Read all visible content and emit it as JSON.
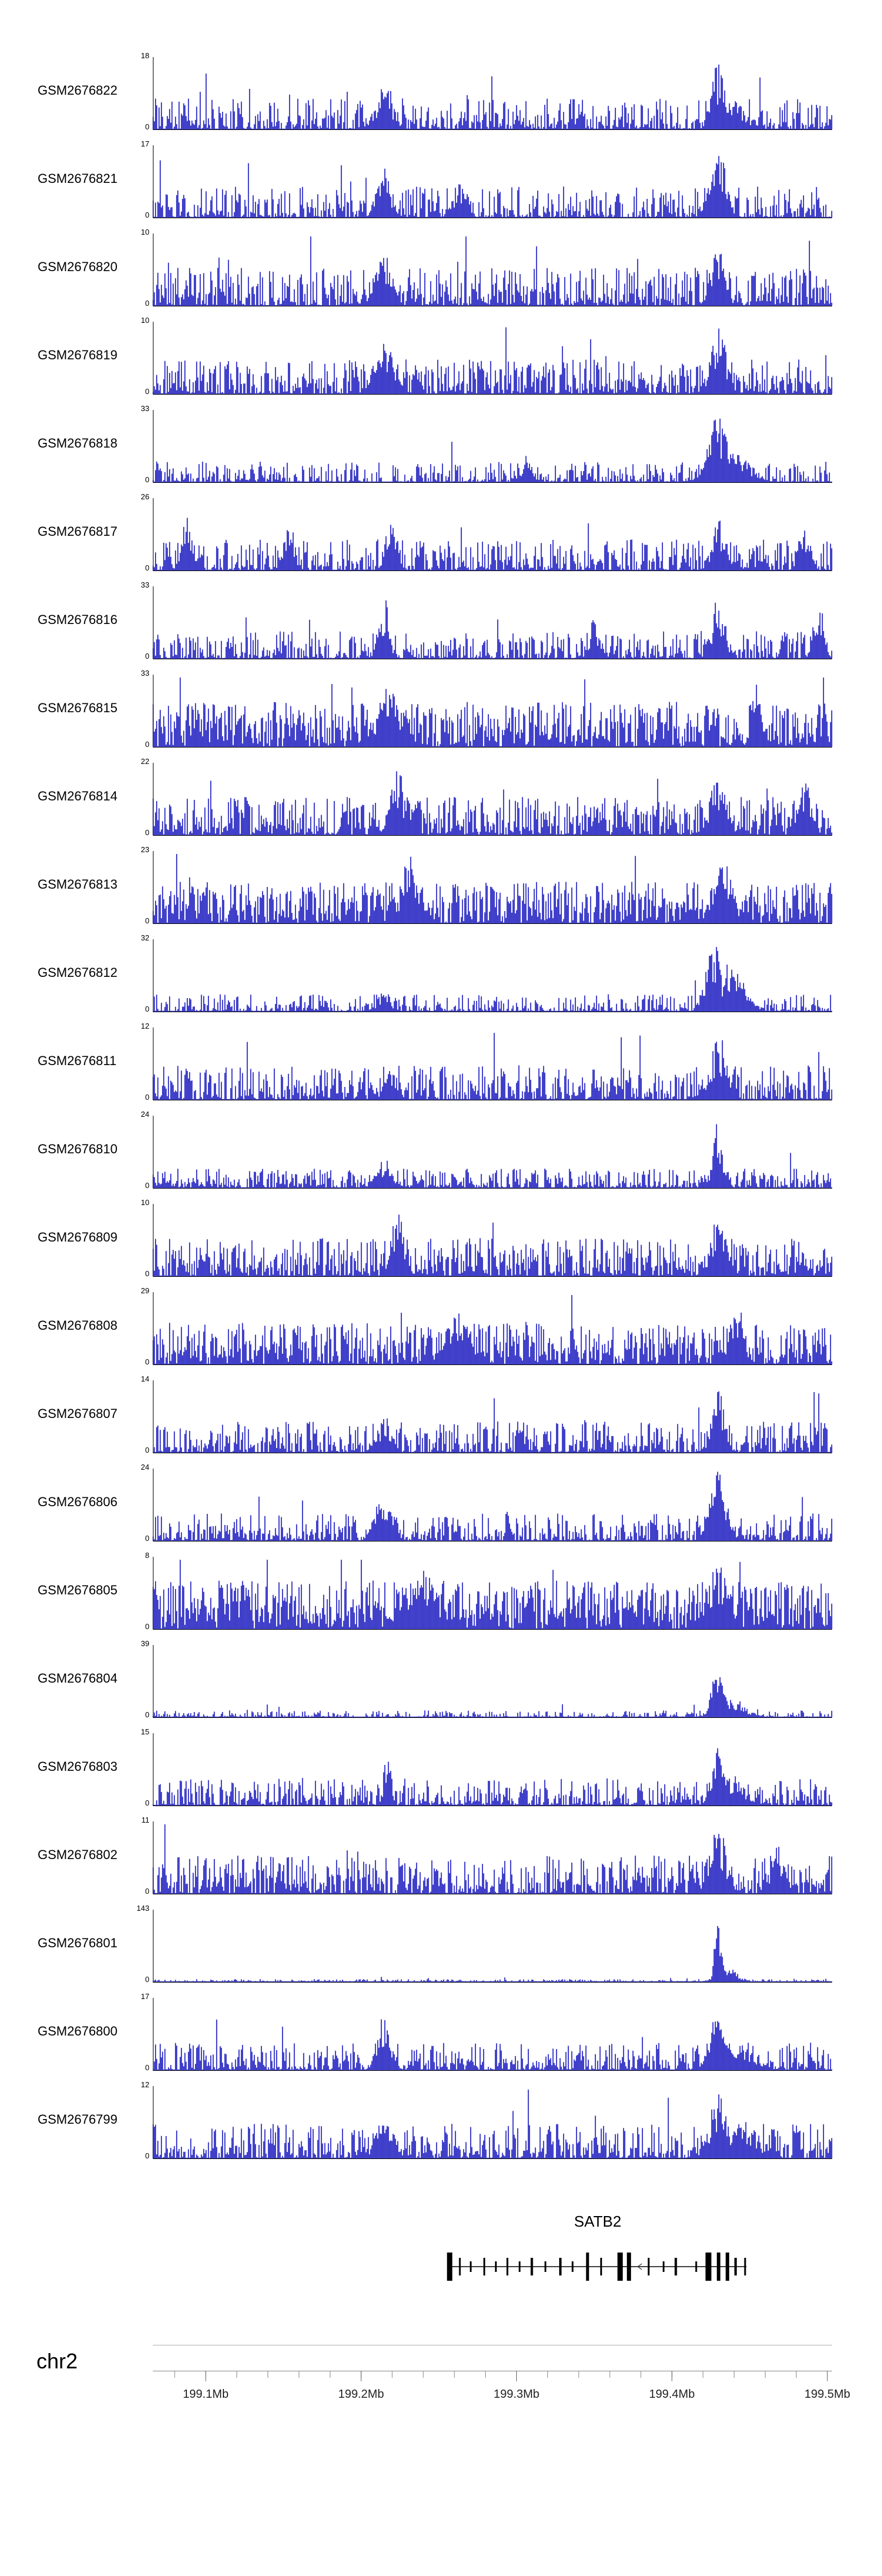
{
  "chromosome": {
    "label": "chr2"
  },
  "colors": {
    "signal": "#0000B8",
    "axis": "#000000",
    "gene": "#000000",
    "ruler": "#888888",
    "ruler_separator": "#b0b0b0",
    "tick_text": "#222222"
  },
  "chart_data": {
    "type": "area",
    "title": "",
    "description": "Genome browser read-coverage tracks over the SATB2 locus on chr2",
    "legend": "none",
    "grid": "off",
    "chromosome_label": "chr2",
    "x_axis": {
      "chrom": "chr2",
      "unit": "Mb",
      "range_mb": [
        199.066,
        199.503
      ],
      "tick_values_mb": [
        199.1,
        199.2,
        199.3,
        199.4,
        199.5
      ],
      "tick_labels": [
        "199.1Mb",
        "199.2Mb",
        "199.3Mb",
        "199.4Mb",
        "199.5Mb"
      ],
      "minor_tick_step_mb": 0.02
    },
    "y_axis": {
      "min_label": "0"
    },
    "peak_positions_mb": {
      "primary": 199.43,
      "secondary": 199.215
    },
    "tracks": [
      {
        "name": "GSM2676822",
        "y_max": 18,
        "seed": 1,
        "base": 0.45,
        "sharp": 2.2,
        "peaks": [
          [
            0.34,
            0.012,
            0.7
          ],
          [
            0.832,
            0.01,
            1.0
          ],
          [
            0.85,
            0.02,
            0.45
          ]
        ]
      },
      {
        "name": "GSM2676821",
        "y_max": 17,
        "seed": 2,
        "base": 0.45,
        "sharp": 2.2,
        "peaks": [
          [
            0.34,
            0.01,
            0.75
          ],
          [
            0.832,
            0.012,
            1.0
          ],
          [
            0.45,
            0.01,
            0.5
          ]
        ]
      },
      {
        "name": "GSM2676820",
        "y_max": 10,
        "seed": 3,
        "base": 0.55,
        "sharp": 1.6,
        "peaks": [
          [
            0.34,
            0.012,
            0.8
          ],
          [
            0.832,
            0.01,
            1.0
          ]
        ]
      },
      {
        "name": "GSM2676819",
        "y_max": 10,
        "seed": 4,
        "base": 0.5,
        "sharp": 1.7,
        "peaks": [
          [
            0.34,
            0.015,
            0.8
          ],
          [
            0.832,
            0.012,
            1.0
          ]
        ]
      },
      {
        "name": "GSM2676818",
        "y_max": 33,
        "seed": 5,
        "base": 0.3,
        "sharp": 2.5,
        "peaks": [
          [
            0.832,
            0.014,
            1.0
          ],
          [
            0.85,
            0.025,
            0.55
          ],
          [
            0.55,
            0.008,
            0.4
          ]
        ]
      },
      {
        "name": "GSM2676817",
        "y_max": 26,
        "seed": 6,
        "base": 0.45,
        "sharp": 2.0,
        "peaks": [
          [
            0.05,
            0.008,
            0.85
          ],
          [
            0.2,
            0.008,
            0.75
          ],
          [
            0.35,
            0.008,
            0.8
          ],
          [
            0.832,
            0.01,
            0.8
          ],
          [
            0.96,
            0.008,
            0.75
          ]
        ]
      },
      {
        "name": "GSM2676816",
        "y_max": 33,
        "seed": 7,
        "base": 0.4,
        "sharp": 2.2,
        "peaks": [
          [
            0.34,
            0.008,
            0.9
          ],
          [
            0.65,
            0.008,
            0.6
          ],
          [
            0.832,
            0.01,
            0.9
          ],
          [
            0.98,
            0.008,
            0.85
          ]
        ]
      },
      {
        "name": "GSM2676815",
        "y_max": 33,
        "seed": 8,
        "base": 0.65,
        "sharp": 1.2,
        "peaks": [
          [
            0.89,
            0.008,
            1.0
          ],
          [
            0.35,
            0.02,
            0.85
          ]
        ]
      },
      {
        "name": "GSM2676814",
        "y_max": 22,
        "seed": 9,
        "base": 0.55,
        "sharp": 1.5,
        "peaks": [
          [
            0.36,
            0.01,
            1.0
          ],
          [
            0.832,
            0.012,
            0.9
          ],
          [
            0.96,
            0.01,
            0.8
          ]
        ]
      },
      {
        "name": "GSM2676813",
        "y_max": 23,
        "seed": 10,
        "base": 0.6,
        "sharp": 1.3,
        "peaks": [
          [
            0.38,
            0.015,
            1.0
          ],
          [
            0.84,
            0.015,
            0.9
          ]
        ]
      },
      {
        "name": "GSM2676812",
        "y_max": 32,
        "seed": 11,
        "base": 0.25,
        "sharp": 2.5,
        "peaks": [
          [
            0.825,
            0.012,
            1.0
          ],
          [
            0.85,
            0.02,
            0.7
          ],
          [
            0.34,
            0.01,
            0.3
          ]
        ]
      },
      {
        "name": "GSM2676811",
        "y_max": 12,
        "seed": 12,
        "base": 0.5,
        "sharp": 1.8,
        "peaks": [
          [
            0.832,
            0.012,
            1.0
          ],
          [
            0.35,
            0.01,
            0.5
          ]
        ]
      },
      {
        "name": "GSM2676810",
        "y_max": 24,
        "seed": 13,
        "base": 0.28,
        "sharp": 2.0,
        "peaks": [
          [
            0.832,
            0.008,
            1.0
          ],
          [
            0.34,
            0.012,
            0.45
          ]
        ]
      },
      {
        "name": "GSM2676809",
        "y_max": 10,
        "seed": 14,
        "base": 0.55,
        "sharp": 1.6,
        "peaks": [
          [
            0.36,
            0.01,
            1.0
          ],
          [
            0.832,
            0.012,
            0.85
          ]
        ]
      },
      {
        "name": "GSM2676808",
        "y_max": 29,
        "seed": 15,
        "base": 0.6,
        "sharp": 1.3,
        "peaks": [
          [
            0.86,
            0.01,
            1.0
          ],
          [
            0.45,
            0.02,
            0.8
          ]
        ]
      },
      {
        "name": "GSM2676807",
        "y_max": 14,
        "seed": 16,
        "base": 0.45,
        "sharp": 1.9,
        "peaks": [
          [
            0.832,
            0.01,
            1.0
          ],
          [
            0.34,
            0.01,
            0.55
          ]
        ]
      },
      {
        "name": "GSM2676806",
        "y_max": 24,
        "seed": 17,
        "base": 0.4,
        "sharp": 2.1,
        "peaks": [
          [
            0.34,
            0.012,
            0.8
          ],
          [
            0.832,
            0.012,
            1.0
          ]
        ]
      },
      {
        "name": "GSM2676805",
        "y_max": 8,
        "seed": 18,
        "base": 0.7,
        "sharp": 1.1,
        "peaks": [
          [
            0.832,
            0.015,
            1.0
          ],
          [
            0.4,
            0.02,
            0.85
          ]
        ]
      },
      {
        "name": "GSM2676804",
        "y_max": 39,
        "seed": 19,
        "base": 0.1,
        "sharp": 2.8,
        "peaks": [
          [
            0.832,
            0.008,
            1.0
          ],
          [
            0.85,
            0.02,
            0.3
          ]
        ]
      },
      {
        "name": "GSM2676803",
        "y_max": 15,
        "seed": 20,
        "base": 0.4,
        "sharp": 2.0,
        "peaks": [
          [
            0.345,
            0.005,
            1.0
          ],
          [
            0.832,
            0.01,
            0.85
          ],
          [
            0.85,
            0.02,
            0.45
          ]
        ]
      },
      {
        "name": "GSM2676802",
        "y_max": 11,
        "seed": 21,
        "base": 0.55,
        "sharp": 1.6,
        "peaks": [
          [
            0.832,
            0.012,
            1.0
          ],
          [
            0.92,
            0.01,
            0.7
          ]
        ]
      },
      {
        "name": "GSM2676801",
        "y_max": 143,
        "seed": 22,
        "base": 0.04,
        "sharp": 2.0,
        "peaks": [
          [
            0.832,
            0.005,
            1.0
          ],
          [
            0.845,
            0.015,
            0.22
          ]
        ]
      },
      {
        "name": "GSM2676800",
        "y_max": 17,
        "seed": 23,
        "base": 0.4,
        "sharp": 2.1,
        "peaks": [
          [
            0.34,
            0.01,
            0.8
          ],
          [
            0.832,
            0.012,
            1.0
          ],
          [
            0.855,
            0.025,
            0.45
          ]
        ]
      },
      {
        "name": "GSM2676799",
        "y_max": 12,
        "seed": 24,
        "base": 0.5,
        "sharp": 1.8,
        "peaks": [
          [
            0.34,
            0.012,
            0.7
          ],
          [
            0.832,
            0.012,
            1.0
          ],
          [
            0.87,
            0.02,
            0.55
          ]
        ]
      }
    ],
    "gene_annotation": {
      "name": "SATB2",
      "strand": "-",
      "start_f": 0.436,
      "end_f": 0.874,
      "exons": [
        [
          0.437,
          9,
          3
        ],
        [
          0.452,
          3,
          2
        ],
        [
          0.468,
          3,
          1
        ],
        [
          0.488,
          3,
          2
        ],
        [
          0.505,
          3,
          1
        ],
        [
          0.522,
          3,
          2
        ],
        [
          0.54,
          3,
          1
        ],
        [
          0.558,
          4,
          2
        ],
        [
          0.578,
          3,
          1
        ],
        [
          0.6,
          4,
          2
        ],
        [
          0.618,
          3,
          1
        ],
        [
          0.64,
          5,
          3
        ],
        [
          0.66,
          3,
          2
        ],
        [
          0.688,
          9,
          3
        ],
        [
          0.701,
          7,
          3
        ],
        [
          0.73,
          3,
          2
        ],
        [
          0.752,
          3,
          1
        ],
        [
          0.77,
          4,
          2
        ],
        [
          0.8,
          3,
          1
        ],
        [
          0.818,
          10,
          3
        ],
        [
          0.833,
          6,
          3
        ],
        [
          0.846,
          6,
          3
        ],
        [
          0.858,
          4,
          2
        ],
        [
          0.872,
          3,
          2
        ]
      ]
    }
  }
}
